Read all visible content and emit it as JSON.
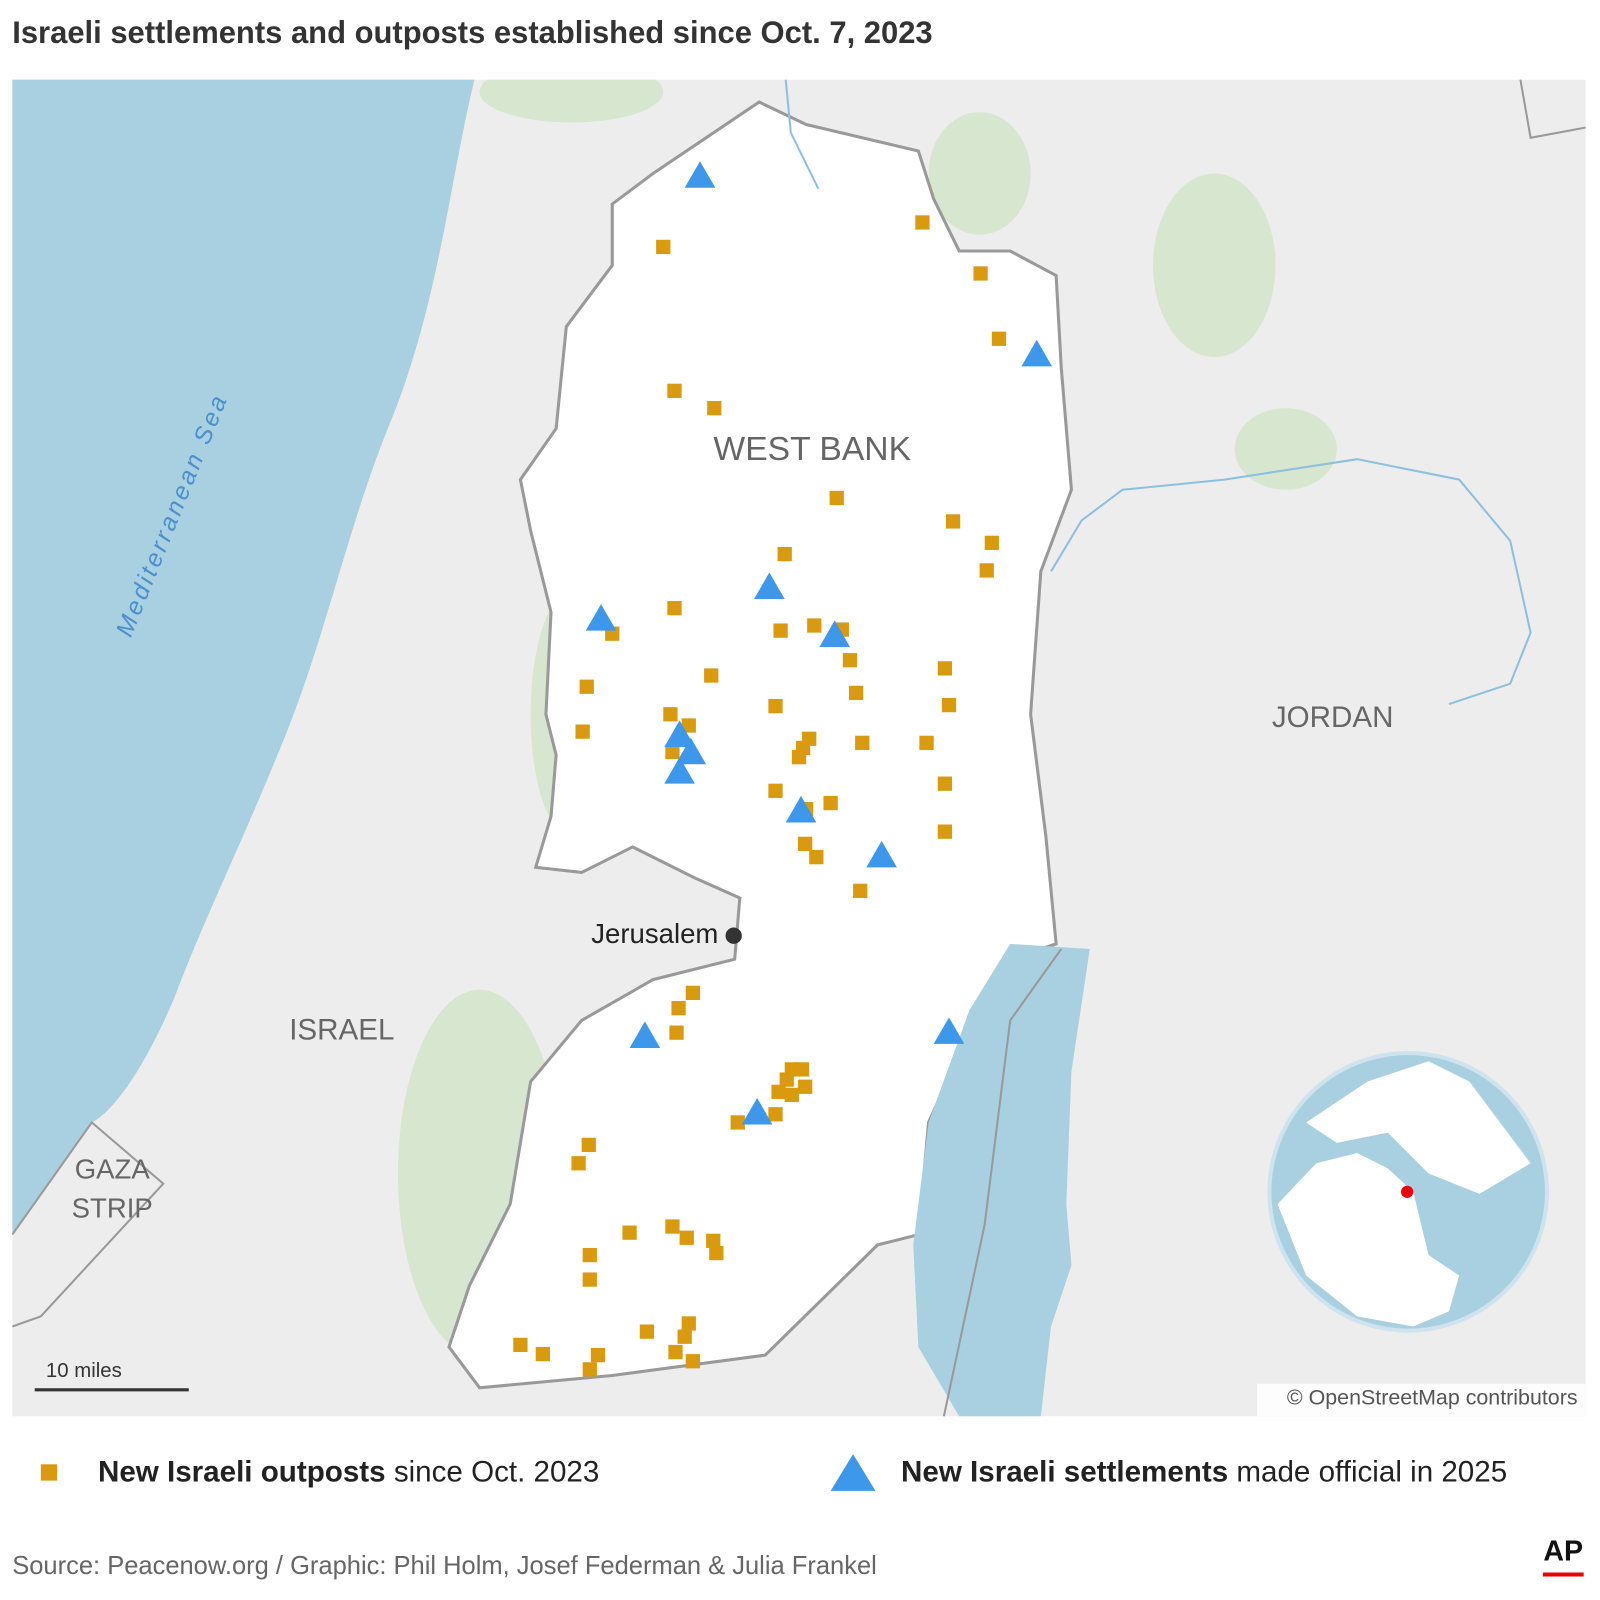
{
  "header": {
    "title": "Israeli settlements and outposts established since Oct. 7, 2023"
  },
  "map": {
    "labels": {
      "sea": "Mediterranean Sea",
      "west_bank": "WEST BANK",
      "jordan": "JORDAN",
      "israel": "ISRAEL",
      "gaza": [
        "GAZA",
        "STRIP"
      ],
      "jerusalem": "Jerusalem"
    },
    "scale_bar": "10 miles",
    "attribution": "© OpenStreetMap contributors"
  },
  "legend": [
    {
      "bold": "New Israeli outposts",
      "rest": "since Oct. 2023"
    },
    {
      "bold": "New Israeli settlements",
      "rest": "made official in 2025"
    }
  ],
  "footer": {
    "source": "Source: Peacenow.org / Graphic: Phil Holm, Josef Federman & Julia Frankel",
    "logo": "AP"
  }
}
